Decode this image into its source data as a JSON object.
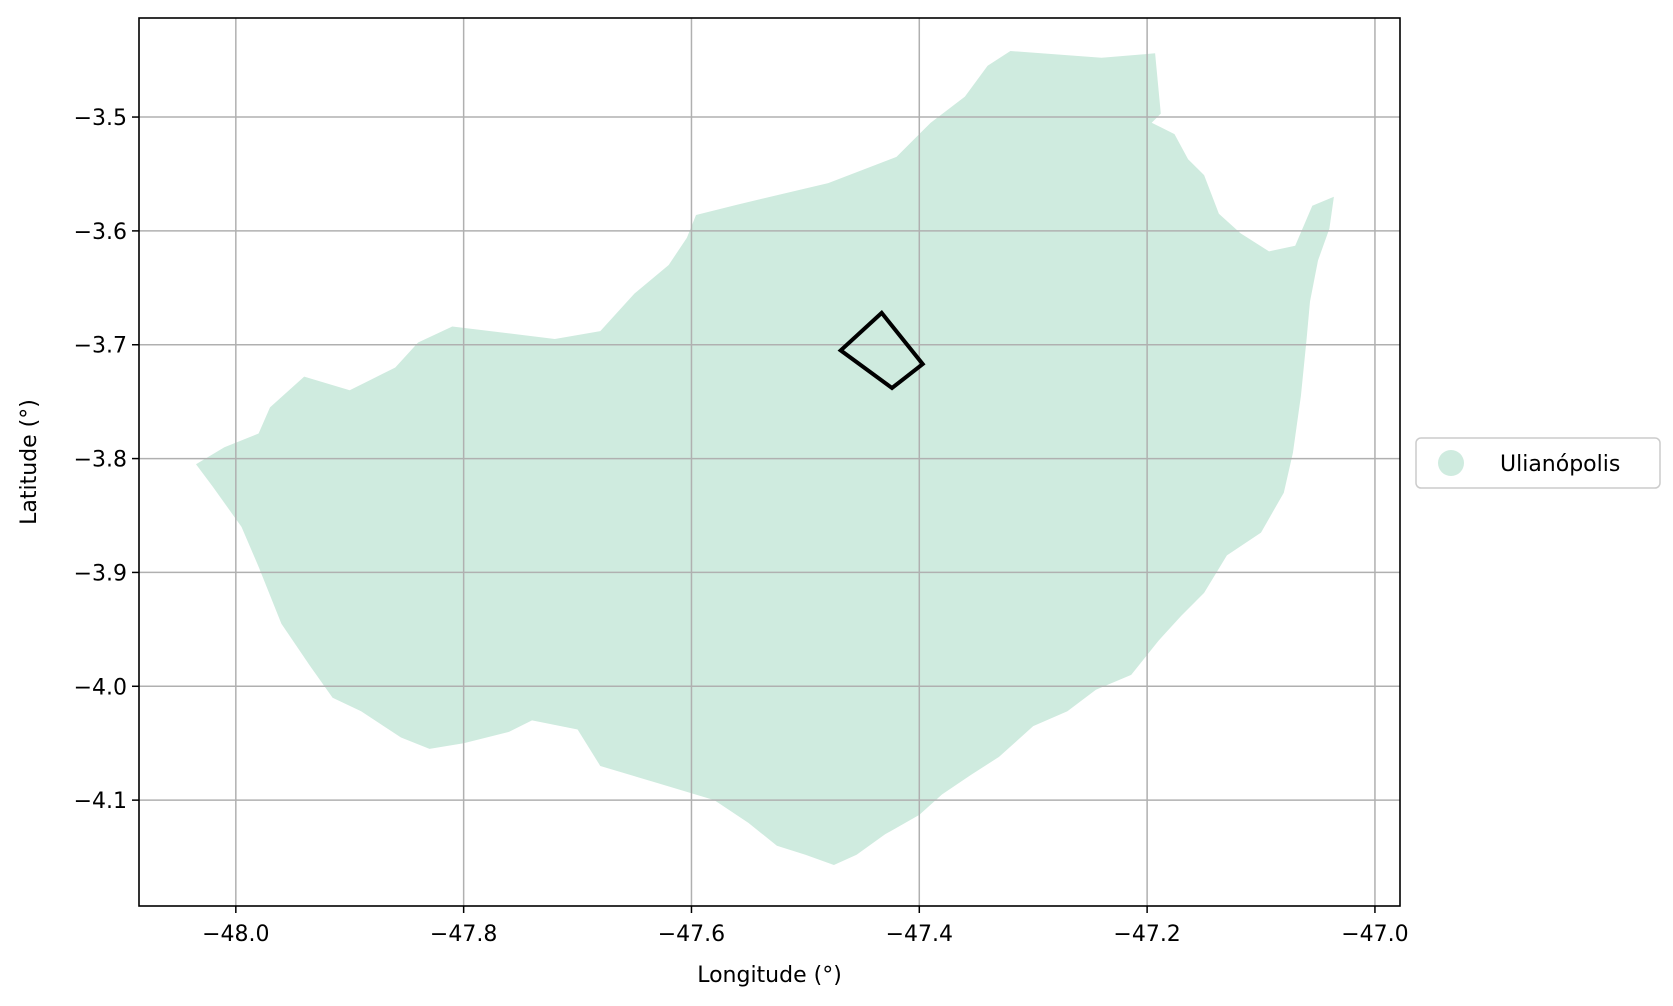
{
  "chart_data": {
    "type": "map",
    "xlabel": "Longitude (°)",
    "ylabel": "Latitude (°)",
    "xlim": [
      -48.085,
      -46.978
    ],
    "ylim": [
      -4.193,
      -3.413
    ],
    "grid": true,
    "x_ticks": [
      {
        "value": -48.0,
        "label": "−48.0"
      },
      {
        "value": -47.8,
        "label": "−47.8"
      },
      {
        "value": -47.6,
        "label": "−47.6"
      },
      {
        "value": -47.4,
        "label": "−47.4"
      },
      {
        "value": -47.2,
        "label": "−47.2"
      },
      {
        "value": -47.0,
        "label": "−47.0"
      }
    ],
    "y_ticks": [
      {
        "value": -3.5,
        "label": "−3.5"
      },
      {
        "value": -3.6,
        "label": "−3.6"
      },
      {
        "value": -3.7,
        "label": "−3.7"
      },
      {
        "value": -3.8,
        "label": "−3.8"
      },
      {
        "value": -3.9,
        "label": "−3.9"
      },
      {
        "value": -4.0,
        "label": "−4.0"
      },
      {
        "value": -4.1,
        "label": "−4.1"
      }
    ],
    "legend": {
      "placement": "center-right outside",
      "entries": [
        {
          "label": "Ulianópolis",
          "color": "#cfebdf"
        }
      ]
    },
    "region": {
      "name": "Ulianópolis",
      "color": "#cfebdf",
      "boundary": [
        [
          -47.56,
          -3.577
        ],
        [
          -47.48,
          -3.558
        ],
        [
          -47.42,
          -3.535
        ],
        [
          -47.39,
          -3.505
        ],
        [
          -47.36,
          -3.482
        ],
        [
          -47.34,
          -3.455
        ],
        [
          -47.32,
          -3.442
        ],
        [
          -47.24,
          -3.448
        ],
        [
          -47.193,
          -3.444
        ],
        [
          -47.188,
          -3.497
        ],
        [
          -47.196,
          -3.505
        ],
        [
          -47.176,
          -3.515
        ],
        [
          -47.164,
          -3.537
        ],
        [
          -47.15,
          -3.551
        ],
        [
          -47.137,
          -3.585
        ],
        [
          -47.118,
          -3.602
        ],
        [
          -47.093,
          -3.618
        ],
        [
          -47.07,
          -3.613
        ],
        [
          -47.055,
          -3.578
        ],
        [
          -47.036,
          -3.57
        ],
        [
          -47.04,
          -3.598
        ],
        [
          -47.05,
          -3.626
        ],
        [
          -47.057,
          -3.662
        ],
        [
          -47.06,
          -3.695
        ],
        [
          -47.065,
          -3.745
        ],
        [
          -47.072,
          -3.795
        ],
        [
          -47.08,
          -3.83
        ],
        [
          -47.1,
          -3.865
        ],
        [
          -47.13,
          -3.885
        ],
        [
          -47.15,
          -3.918
        ],
        [
          -47.17,
          -3.938
        ],
        [
          -47.19,
          -3.96
        ],
        [
          -47.214,
          -3.99
        ],
        [
          -47.245,
          -4.003
        ],
        [
          -47.27,
          -4.022
        ],
        [
          -47.3,
          -4.035
        ],
        [
          -47.33,
          -4.062
        ],
        [
          -47.355,
          -4.078
        ],
        [
          -47.38,
          -4.095
        ],
        [
          -47.4,
          -4.113
        ],
        [
          -47.43,
          -4.13
        ],
        [
          -47.455,
          -4.148
        ],
        [
          -47.475,
          -4.157
        ],
        [
          -47.5,
          -4.148
        ],
        [
          -47.525,
          -4.14
        ],
        [
          -47.55,
          -4.12
        ],
        [
          -47.58,
          -4.1
        ],
        [
          -47.63,
          -4.085
        ],
        [
          -47.68,
          -4.07
        ],
        [
          -47.7,
          -4.038
        ],
        [
          -47.74,
          -4.03
        ],
        [
          -47.76,
          -4.04
        ],
        [
          -47.8,
          -4.05
        ],
        [
          -47.83,
          -4.055
        ],
        [
          -47.855,
          -4.045
        ],
        [
          -47.89,
          -4.022
        ],
        [
          -47.915,
          -4.01
        ],
        [
          -47.935,
          -3.982
        ],
        [
          -47.96,
          -3.945
        ],
        [
          -47.98,
          -3.895
        ],
        [
          -47.995,
          -3.86
        ],
        [
          -48.02,
          -3.825
        ],
        [
          -48.035,
          -3.805
        ],
        [
          -48.01,
          -3.79
        ],
        [
          -47.98,
          -3.778
        ],
        [
          -47.97,
          -3.755
        ],
        [
          -47.94,
          -3.728
        ],
        [
          -47.9,
          -3.74
        ],
        [
          -47.86,
          -3.72
        ],
        [
          -47.84,
          -3.698
        ],
        [
          -47.81,
          -3.684
        ],
        [
          -47.76,
          -3.69
        ],
        [
          -47.72,
          -3.695
        ],
        [
          -47.68,
          -3.688
        ],
        [
          -47.65,
          -3.655
        ],
        [
          -47.62,
          -3.63
        ],
        [
          -47.604,
          -3.606
        ],
        [
          -47.596,
          -3.586
        ]
      ]
    },
    "marker": {
      "shape": "quadrilateral outline",
      "color": "#000000",
      "points": [
        [
          -47.433,
          -3.672
        ],
        [
          -47.469,
          -3.705
        ],
        [
          -47.424,
          -3.738
        ],
        [
          -47.397,
          -3.717
        ]
      ]
    }
  }
}
